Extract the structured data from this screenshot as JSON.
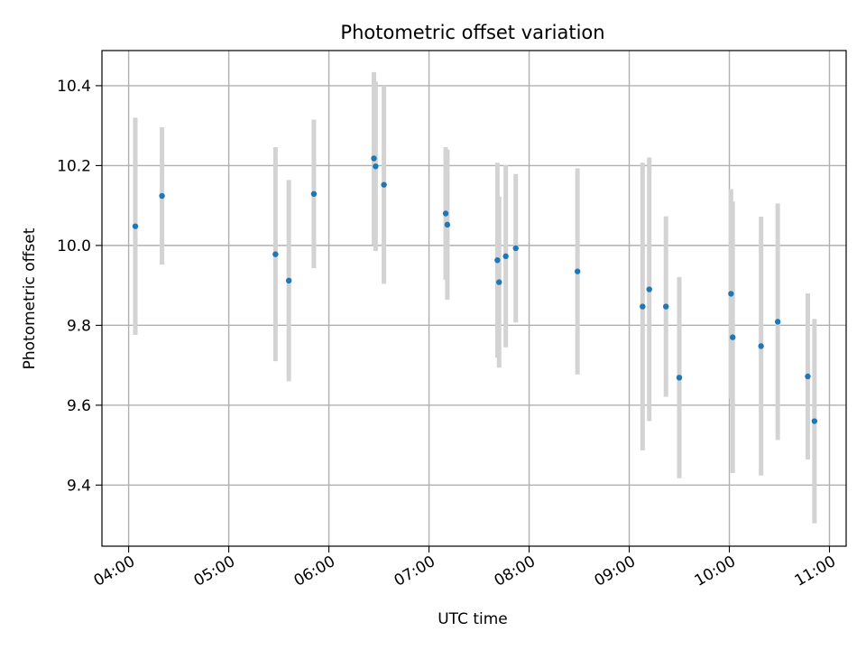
{
  "chart_data": {
    "type": "scatter",
    "title": "Photometric offset variation",
    "xlabel": "UTC time",
    "ylabel": "Photometric offset",
    "xlim": [
      "03:44",
      "11:10"
    ],
    "ylim": [
      9.247,
      10.488
    ],
    "x_ticks": [
      "04:00",
      "05:00",
      "06:00",
      "07:00",
      "08:00",
      "09:00",
      "10:00",
      "11:00"
    ],
    "y_ticks": [
      "9.4",
      "9.6",
      "9.8",
      "10.0",
      "10.2",
      "10.4"
    ],
    "grid": true,
    "marker_color": "#1f77b4",
    "errorbar_color": "#d3d3d3",
    "series": [
      {
        "points": [
          {
            "x": "04:04",
            "y": 10.048,
            "err": 0.272
          },
          {
            "x": "04:20",
            "y": 10.124,
            "err": 0.172
          },
          {
            "x": "05:28",
            "y": 9.978,
            "err": 0.268
          },
          {
            "x": "05:36",
            "y": 9.912,
            "err": 0.252
          },
          {
            "x": "05:51",
            "y": 10.129,
            "err": 0.186
          },
          {
            "x": "06:27",
            "y": 10.218,
            "err": 0.216
          },
          {
            "x": "06:28",
            "y": 10.198,
            "err": 0.212
          },
          {
            "x": "06:33",
            "y": 10.152,
            "err": 0.248
          },
          {
            "x": "07:10",
            "y": 10.08,
            "err": 0.166
          },
          {
            "x": "07:11",
            "y": 10.052,
            "err": 0.188
          },
          {
            "x": "07:41",
            "y": 9.963,
            "err": 0.244
          },
          {
            "x": "07:42",
            "y": 9.908,
            "err": 0.214
          },
          {
            "x": "07:46",
            "y": 9.973,
            "err": 0.228
          },
          {
            "x": "07:52",
            "y": 9.993,
            "err": 0.186
          },
          {
            "x": "08:29",
            "y": 9.935,
            "err": 0.258
          },
          {
            "x": "09:08",
            "y": 9.847,
            "err": 0.36
          },
          {
            "x": "09:12",
            "y": 9.89,
            "err": 0.33
          },
          {
            "x": "09:22",
            "y": 9.847,
            "err": 0.226
          },
          {
            "x": "09:30",
            "y": 9.669,
            "err": 0.252
          },
          {
            "x": "10:01",
            "y": 9.879,
            "err": 0.262
          },
          {
            "x": "10:02",
            "y": 9.77,
            "err": 0.34
          },
          {
            "x": "10:19",
            "y": 9.748,
            "err": 0.324
          },
          {
            "x": "10:29",
            "y": 9.809,
            "err": 0.296
          },
          {
            "x": "10:47",
            "y": 9.672,
            "err": 0.208
          },
          {
            "x": "10:51",
            "y": 9.56,
            "err": 0.256
          }
        ]
      }
    ]
  }
}
